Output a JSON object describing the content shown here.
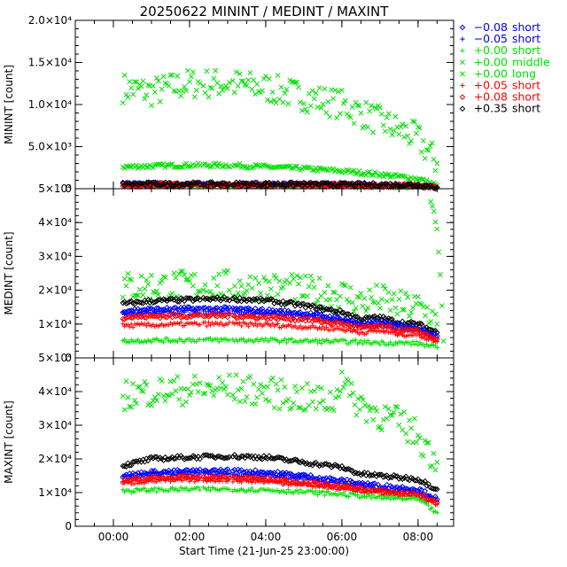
{
  "title": "20250622 MININT / MEDINT / MAXINT",
  "xlabel": "Start Time (21-Jun-25 23:00:00)",
  "x_ticks": [
    "00:00",
    "02:00",
    "04:00",
    "06:00",
    "08:00"
  ],
  "legend": [
    {
      "symbol": "diamond",
      "value": "−0.08",
      "type": "short",
      "color": "#0000ff"
    },
    {
      "symbol": "plus",
      "value": "−0.05",
      "type": "short",
      "color": "#0000ff"
    },
    {
      "symbol": "plus",
      "value": "+0.00",
      "type": "short",
      "color": "#00e000"
    },
    {
      "symbol": "cross",
      "value": "+0.00",
      "type": "middle",
      "color": "#00e000"
    },
    {
      "symbol": "cross",
      "value": "+0.00",
      "type": "long",
      "color": "#00e000"
    },
    {
      "symbol": "plus",
      "value": "+0.05",
      "type": "short",
      "color": "#ff0000"
    },
    {
      "symbol": "diamond",
      "value": "+0.08",
      "type": "short",
      "color": "#ff0000"
    },
    {
      "symbol": "diamond",
      "value": "+0.35",
      "type": "short",
      "color": "#000000"
    }
  ],
  "chart_data": [
    {
      "type": "scatter",
      "title": "20250622 MININT / MEDINT / MAXINT",
      "ylabel": "MININT [count]",
      "xlim": [
        "-01:00",
        "08:56"
      ],
      "ylim": [
        0,
        20000
      ],
      "y_ticks": [
        "0",
        "5.0×10³",
        "1.0×10⁴",
        "1.5×10⁴",
        "2.0×10⁴"
      ],
      "series": [
        {
          "name": "+0.00 middle",
          "x": [
            "00:15",
            "01:00",
            "02:00",
            "03:00",
            "04:00",
            "05:00",
            "06:00",
            "07:00",
            "08:00",
            "08:30"
          ],
          "y": [
            12000,
            11500,
            12500,
            12500,
            12000,
            11000,
            10000,
            8000,
            6000,
            3000
          ]
        },
        {
          "name": "+0.00 long",
          "x": [
            "00:15",
            "01:00",
            "02:00",
            "03:00",
            "04:00",
            "05:00",
            "06:00",
            "07:00",
            "08:00",
            "08:30"
          ],
          "y": [
            2600,
            2700,
            2800,
            2800,
            2600,
            2400,
            2100,
            1700,
            1200,
            400
          ]
        },
        {
          "name": "−0.08 short",
          "x": [
            "00:15",
            "02:00",
            "04:00",
            "06:00",
            "08:00",
            "08:30"
          ],
          "y": [
            500,
            500,
            500,
            450,
            400,
            150
          ]
        },
        {
          "name": "−0.05 short",
          "x": [
            "00:15",
            "02:00",
            "04:00",
            "06:00",
            "08:00",
            "08:30"
          ],
          "y": [
            450,
            450,
            450,
            400,
            350,
            120
          ]
        },
        {
          "name": "+0.00 short",
          "x": [
            "00:15",
            "02:00",
            "04:00",
            "06:00",
            "08:00",
            "08:30"
          ],
          "y": [
            350,
            350,
            350,
            320,
            280,
            100
          ]
        },
        {
          "name": "+0.05 short",
          "x": [
            "00:15",
            "02:00",
            "04:00",
            "06:00",
            "08:00",
            "08:30"
          ],
          "y": [
            420,
            420,
            420,
            380,
            330,
            110
          ]
        },
        {
          "name": "+0.08 short",
          "x": [
            "00:15",
            "02:00",
            "04:00",
            "06:00",
            "08:00",
            "08:30"
          ],
          "y": [
            470,
            470,
            470,
            420,
            370,
            130
          ]
        },
        {
          "name": "+0.35 short",
          "x": [
            "00:15",
            "02:00",
            "04:00",
            "06:00",
            "08:00",
            "08:30"
          ],
          "y": [
            550,
            550,
            550,
            500,
            450,
            170
          ]
        }
      ]
    },
    {
      "type": "scatter",
      "ylabel": "MEDINT [count]",
      "xlim": [
        "-01:00",
        "08:56"
      ],
      "ylim": [
        0,
        50000
      ],
      "y_ticks": [
        "0",
        "1×10⁴",
        "2×10⁴",
        "3×10⁴",
        "4×10⁴",
        "5×10⁴"
      ],
      "series": [
        {
          "name": "+0.00 middle",
          "x": [
            "00:15",
            "01:00",
            "02:00",
            "03:00",
            "04:00",
            "05:00",
            "06:00",
            "06:30",
            "07:00",
            "07:30",
            "08:00",
            "08:20",
            "08:30"
          ],
          "y": [
            21000,
            21300,
            21500,
            21500,
            21000,
            20000,
            19000,
            16500,
            17500,
            15500,
            15000,
            13000,
            10000
          ]
        },
        {
          "name": "+0.00 long",
          "x": [
            "08:20",
            "08:25",
            "08:30",
            "08:35",
            "08:40"
          ],
          "y": [
            46000,
            43000,
            38000,
            25000,
            5000
          ]
        },
        {
          "name": "+0.35 short",
          "x": [
            "00:15",
            "01:00",
            "02:00",
            "03:00",
            "04:00",
            "05:00",
            "06:00",
            "06:30",
            "07:00",
            "07:30",
            "08:00",
            "08:30"
          ],
          "y": [
            16000,
            16800,
            17200,
            17500,
            17000,
            15500,
            13500,
            11500,
            12000,
            10500,
            10000,
            7500
          ]
        },
        {
          "name": "−0.08 short",
          "x": [
            "00:15",
            "01:00",
            "02:00",
            "03:00",
            "04:00",
            "05:00",
            "06:00",
            "06:30",
            "07:00",
            "07:30",
            "08:00",
            "08:30"
          ],
          "y": [
            14000,
            14300,
            14500,
            14500,
            14000,
            13200,
            11500,
            10000,
            10600,
            9400,
            9000,
            6500
          ]
        },
        {
          "name": "−0.05 short",
          "x": [
            "00:15",
            "01:00",
            "02:00",
            "03:00",
            "04:00",
            "05:00",
            "06:00",
            "06:30",
            "07:00",
            "07:30",
            "08:00",
            "08:30"
          ],
          "y": [
            13000,
            13300,
            13500,
            13500,
            13000,
            12300,
            10800,
            9400,
            10000,
            8800,
            8400,
            6000
          ]
        },
        {
          "name": "+0.08 short",
          "x": [
            "00:15",
            "01:00",
            "02:00",
            "03:00",
            "04:00",
            "05:00",
            "06:00",
            "06:30",
            "07:00",
            "07:30",
            "08:00",
            "08:30"
          ],
          "y": [
            12000,
            12300,
            12500,
            12500,
            12000,
            11500,
            10000,
            8800,
            9300,
            8200,
            7800,
            5500
          ]
        },
        {
          "name": "+0.05 short",
          "x": [
            "00:15",
            "01:00",
            "02:00",
            "03:00",
            "04:00",
            "05:00",
            "06:00",
            "06:30",
            "07:00",
            "07:30",
            "08:00",
            "08:30"
          ],
          "y": [
            9500,
            9700,
            10000,
            10000,
            9800,
            9200,
            8500,
            7500,
            8000,
            7000,
            6800,
            4800
          ]
        },
        {
          "name": "+0.00 short",
          "x": [
            "00:15",
            "01:00",
            "02:00",
            "03:00",
            "04:00",
            "05:00",
            "06:00",
            "07:00",
            "08:00",
            "08:30"
          ],
          "y": [
            5000,
            5200,
            5300,
            5300,
            5200,
            5000,
            4800,
            4500,
            4300,
            3000
          ]
        }
      ]
    },
    {
      "type": "scatter",
      "ylabel": "MAXINT [count]",
      "xlim": [
        "-01:00",
        "08:56"
      ],
      "ylim": [
        0,
        50000
      ],
      "y_ticks": [
        "0",
        "1×10⁴",
        "2×10⁴",
        "3×10⁴",
        "4×10⁴",
        "5×10⁴"
      ],
      "series": [
        {
          "name": "+0.00 middle",
          "x": [
            "00:15",
            "01:00",
            "02:00",
            "03:00",
            "04:00",
            "05:00",
            "05:50",
            "06:00",
            "06:15",
            "07:00",
            "07:30",
            "08:00",
            "08:30"
          ],
          "y": [
            39000,
            40000,
            40500,
            41000,
            40000,
            38000,
            37000,
            46000,
            38000,
            33000,
            31000,
            27000,
            19000
          ]
        },
        {
          "name": "+0.35 short",
          "x": [
            "00:15",
            "01:00",
            "02:00",
            "03:00",
            "04:00",
            "05:00",
            "06:00",
            "06:30",
            "07:00",
            "08:00",
            "08:30"
          ],
          "y": [
            18000,
            20000,
            20500,
            20800,
            20500,
            19000,
            17500,
            15500,
            15000,
            14000,
            11000
          ]
        },
        {
          "name": "−0.08 short",
          "x": [
            "00:15",
            "01:00",
            "02:00",
            "03:00",
            "04:00",
            "05:00",
            "06:00",
            "07:00",
            "08:00",
            "08:30"
          ],
          "y": [
            15000,
            16000,
            16300,
            16500,
            16000,
            15000,
            13500,
            12000,
            11000,
            8000
          ]
        },
        {
          "name": "−0.05 short",
          "x": [
            "00:15",
            "01:00",
            "02:00",
            "03:00",
            "04:00",
            "05:00",
            "06:00",
            "07:00",
            "08:00",
            "08:30"
          ],
          "y": [
            14500,
            15300,
            15500,
            15500,
            15000,
            14000,
            12500,
            11000,
            10000,
            7500
          ]
        },
        {
          "name": "+0.08 short",
          "x": [
            "00:15",
            "01:00",
            "02:00",
            "03:00",
            "04:00",
            "05:00",
            "06:00",
            "07:00",
            "08:00",
            "08:30"
          ],
          "y": [
            13500,
            14200,
            14500,
            14500,
            14000,
            13000,
            11800,
            10300,
            9500,
            7000
          ]
        },
        {
          "name": "+0.05 short",
          "x": [
            "00:15",
            "01:00",
            "02:00",
            "03:00",
            "04:00",
            "05:00",
            "06:00",
            "07:00",
            "08:00",
            "08:30"
          ],
          "y": [
            12800,
            13500,
            13800,
            13800,
            13300,
            12400,
            11200,
            9800,
            9000,
            6500
          ]
        },
        {
          "name": "+0.00 short",
          "x": [
            "00:15",
            "01:00",
            "02:00",
            "03:00",
            "04:00",
            "05:00",
            "06:00",
            "07:00",
            "08:00",
            "08:30"
          ],
          "y": [
            10500,
            10800,
            11000,
            11000,
            10800,
            10200,
            9500,
            8500,
            8000,
            4000
          ]
        }
      ]
    }
  ]
}
